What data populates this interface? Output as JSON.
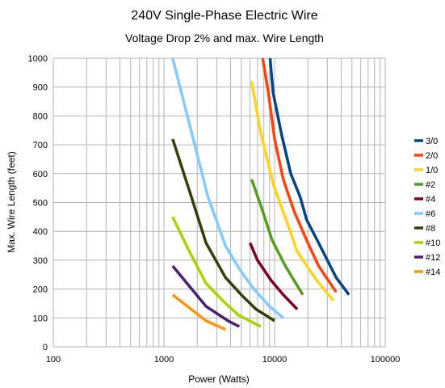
{
  "chart_data": {
    "type": "line",
    "title": "240V Single-Phase Electric Wire",
    "subtitle": "Voltage Drop 2% and max. Wire Length",
    "xlabel": "Power (Watts)",
    "ylabel": "Max. Wire Length (feet)",
    "xscale": "log",
    "xlim": [
      100,
      100000
    ],
    "ylim": [
      0,
      1000
    ],
    "x_ticks": [
      100,
      1000,
      10000,
      100000
    ],
    "x_tick_labels": [
      "100",
      "1000",
      "10000",
      "100000"
    ],
    "y_ticks": [
      0,
      100,
      200,
      300,
      400,
      500,
      600,
      700,
      800,
      900,
      1000
    ],
    "y_tick_labels": [
      "0",
      "100",
      "200",
      "300",
      "400",
      "500",
      "600",
      "700",
      "800",
      "900",
      "1000"
    ],
    "grid": true,
    "legend_position": "right",
    "series": [
      {
        "name": "3/0",
        "color": "#004586",
        "points": [
          [
            9100,
            1000
          ],
          [
            9700,
            880
          ],
          [
            11500,
            740
          ],
          [
            14000,
            600
          ],
          [
            17000,
            520
          ],
          [
            19500,
            440
          ],
          [
            25000,
            360
          ],
          [
            36000,
            240
          ],
          [
            47000,
            180
          ]
        ]
      },
      {
        "name": "2/0",
        "color": "#ff420e",
        "points": [
          [
            7800,
            1000
          ],
          [
            8800,
            880
          ],
          [
            10000,
            720
          ],
          [
            12000,
            580
          ],
          [
            15000,
            470
          ],
          [
            20000,
            360
          ],
          [
            25000,
            280
          ],
          [
            36000,
            190
          ]
        ]
      },
      {
        "name": "1/0",
        "color": "#ffd320",
        "points": [
          [
            6200,
            920
          ],
          [
            7500,
            740
          ],
          [
            9800,
            560
          ],
          [
            13000,
            430
          ],
          [
            16000,
            330
          ],
          [
            24000,
            230
          ],
          [
            34000,
            160
          ]
        ]
      },
      {
        "name": "#2",
        "color": "#579d1c",
        "points": [
          [
            6200,
            580
          ],
          [
            7500,
            490
          ],
          [
            9500,
            370
          ],
          [
            12500,
            280
          ],
          [
            15000,
            230
          ],
          [
            18000,
            180
          ]
        ]
      },
      {
        "name": "#4",
        "color": "#7e0021",
        "points": [
          [
            6000,
            360
          ],
          [
            7000,
            300
          ],
          [
            9300,
            230
          ],
          [
            12000,
            180
          ],
          [
            16000,
            130
          ]
        ]
      },
      {
        "name": "#6",
        "color": "#83caff",
        "points": [
          [
            1200,
            1000
          ],
          [
            2500,
            520
          ],
          [
            3600,
            350
          ],
          [
            4800,
            270
          ],
          [
            6500,
            200
          ],
          [
            9000,
            140
          ],
          [
            12000,
            100
          ]
        ]
      },
      {
        "name": "#8",
        "color": "#314004",
        "points": [
          [
            1200,
            720
          ],
          [
            1700,
            540
          ],
          [
            2400,
            360
          ],
          [
            3600,
            240
          ],
          [
            5000,
            180
          ],
          [
            6800,
            130
          ],
          [
            10000,
            90
          ]
        ]
      },
      {
        "name": "#10",
        "color": "#aecf00",
        "points": [
          [
            1200,
            450
          ],
          [
            1700,
            330
          ],
          [
            2400,
            220
          ],
          [
            3400,
            160
          ],
          [
            4700,
            110
          ],
          [
            7500,
            70
          ]
        ]
      },
      {
        "name": "#12",
        "color": "#4b1f6f",
        "points": [
          [
            1200,
            280
          ],
          [
            2400,
            140
          ],
          [
            3800,
            90
          ],
          [
            4800,
            70
          ]
        ]
      },
      {
        "name": "#14",
        "color": "#ff950e",
        "points": [
          [
            1200,
            180
          ],
          [
            2400,
            90
          ],
          [
            3600,
            60
          ]
        ]
      }
    ]
  }
}
